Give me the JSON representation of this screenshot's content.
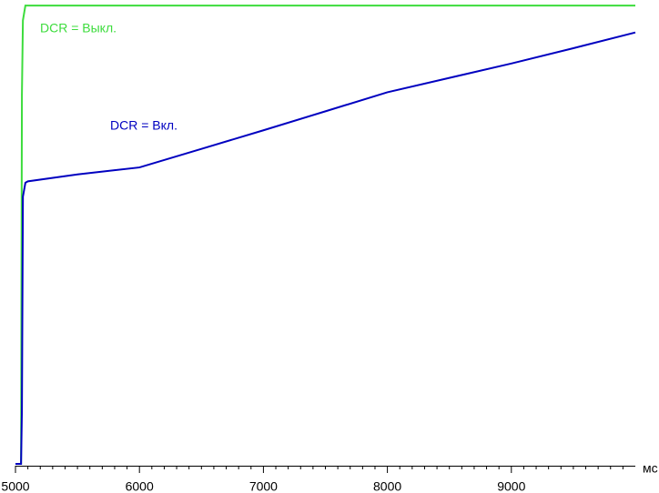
{
  "chart_data": {
    "type": "line",
    "x_label": "мс",
    "x": [
      5000,
      5045,
      5052,
      5060,
      5080,
      5100,
      5500,
      6000,
      6500,
      7000,
      7500,
      8000,
      8500,
      9000,
      9500,
      10000
    ],
    "series": [
      {
        "name": "DCR = Выкл.",
        "color": "#3ddc3d",
        "values": [
          0.4,
          0.4,
          80,
          96,
          99.2,
          99.2,
          99.2,
          99.2,
          99.2,
          99.2,
          99.2,
          99.2,
          99.2,
          99.2,
          99.2,
          99.2
        ]
      },
      {
        "name": "DCR = Вкл.",
        "color": "#0000c0",
        "values": [
          0.4,
          0.4,
          12,
          58,
          61,
          61.3,
          62.8,
          64.3,
          68.3,
          72.3,
          76.4,
          80.5,
          83.6,
          86.7,
          90,
          93.4
        ]
      }
    ],
    "xlim": [
      5000,
      10000
    ],
    "xticks": [
      5000,
      6000,
      7000,
      8000,
      9000
    ],
    "xticks_minor": [
      5100,
      5200,
      5300,
      5400,
      5500,
      5600,
      5700,
      5800,
      5900,
      6100,
      6200,
      6300,
      6400,
      6500,
      6600,
      6700,
      6800,
      6900,
      7100,
      7200,
      7300,
      7400,
      7500,
      7600,
      7700,
      7800,
      7900,
      8100,
      8200,
      8300,
      8400,
      8500,
      8600,
      8700,
      8800,
      8900,
      9100,
      9200,
      9300,
      9400,
      9500,
      9600,
      9700,
      9800,
      9900
    ],
    "ylim": [
      0,
      100
    ]
  }
}
